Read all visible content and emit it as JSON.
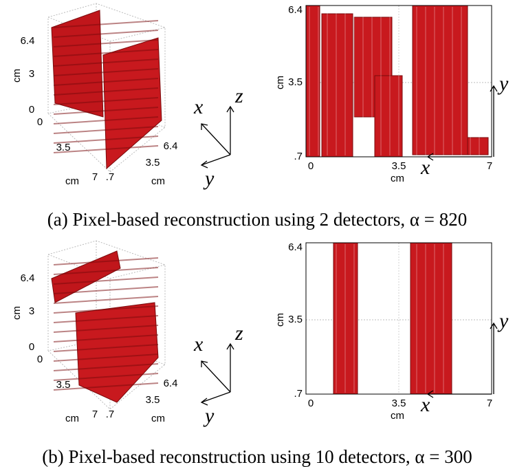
{
  "panels": [
    {
      "view3d": {
        "z_ticks": [
          "6.4",
          "3",
          "0"
        ],
        "x_ticks": [
          "0",
          "3.5",
          "7"
        ],
        "y_ticks": [
          ".7",
          "3.5",
          "6.4"
        ],
        "z_unit": "cm",
        "x_unit": "cm",
        "y_unit": "cm"
      },
      "axes_glyph": {
        "x": "x",
        "y": "y",
        "z": "z"
      },
      "view2d": {
        "y_ticks": [
          "6.4",
          "3.5",
          ".7"
        ],
        "x_ticks": [
          "0",
          "3.5",
          "7"
        ],
        "y_unit": "cm",
        "x_unit": "cm",
        "x_axis": "x",
        "y_axis": "y"
      },
      "caption": "(a) Pixel-based reconstruction using 2 detectors, α = 820"
    },
    {
      "view3d": {
        "z_ticks": [
          "6.4",
          "3",
          "0"
        ],
        "x_ticks": [
          "0",
          "3.5",
          "7"
        ],
        "y_ticks": [
          ".7",
          "3.5",
          "6.4"
        ],
        "z_unit": "cm",
        "x_unit": "cm",
        "y_unit": "cm"
      },
      "axes_glyph": {
        "x": "x",
        "y": "y",
        "z": "z"
      },
      "view2d": {
        "y_ticks": [
          "6.4",
          "3.5",
          ".7"
        ],
        "x_ticks": [
          "0",
          "3.5",
          "7"
        ],
        "y_unit": "cm",
        "x_unit": "cm",
        "x_axis": "x",
        "y_axis": "y"
      },
      "caption": "(b) Pixel-based reconstruction using 10 detectors, α = 300"
    }
  ]
}
